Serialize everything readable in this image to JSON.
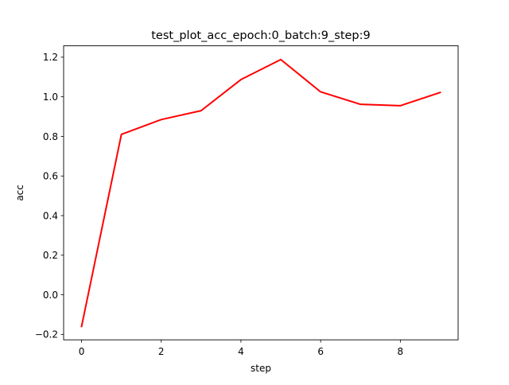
{
  "chart_data": {
    "type": "line",
    "title": "test_plot_acc_epoch:0_batch:9_step:9",
    "xlabel": "step",
    "ylabel": "acc",
    "xlim": [
      -0.45,
      9.45
    ],
    "ylim": [
      -0.2275,
      1.2575
    ],
    "xticks": [
      0,
      2,
      4,
      6,
      8
    ],
    "xtick_labels": [
      "0",
      "2",
      "4",
      "6",
      "8"
    ],
    "yticks": [
      -0.2,
      0.0,
      0.2,
      0.4,
      0.6,
      0.8,
      1.0,
      1.2
    ],
    "ytick_labels": [
      "−0.2",
      "0.0",
      "0.2",
      "0.4",
      "0.6",
      "0.8",
      "1.0",
      "1.2"
    ],
    "grid": false,
    "series": [
      {
        "color": "#ff0000",
        "x": [
          0,
          1,
          2,
          3,
          4,
          5,
          6,
          7,
          8,
          9
        ],
        "y": [
          -0.16,
          0.81,
          0.885,
          0.93,
          1.087,
          1.188,
          1.025,
          0.962,
          0.955,
          1.022
        ]
      }
    ]
  }
}
